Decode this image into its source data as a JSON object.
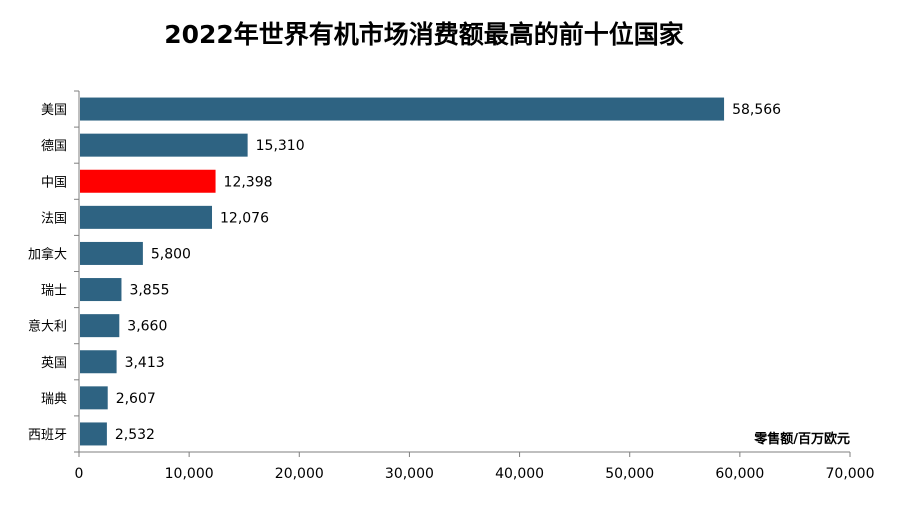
{
  "chart_data": {
    "type": "bar",
    "orientation": "horizontal",
    "title": "2022年世界有机市场消费额最高的前十位国家",
    "unit_label": "零售额/百万欧元",
    "categories": [
      "美国",
      "德国",
      "中国",
      "法国",
      "加拿大",
      "瑞士",
      "意大利",
      "英国",
      "瑞典",
      "西班牙"
    ],
    "values": [
      58566,
      15310,
      12398,
      12076,
      5800,
      3855,
      3660,
      3413,
      2607,
      2532
    ],
    "value_labels": [
      "58,566",
      "15,310",
      "12,398",
      "12,076",
      "5,800",
      "3,855",
      "3,660",
      "3,413",
      "2,607",
      "2,532"
    ],
    "highlight_category": "中国",
    "colors": {
      "bar": "#2e6382",
      "highlight": "#ff0000"
    },
    "xlim": [
      0,
      70000
    ],
    "xticks": [
      0,
      10000,
      20000,
      30000,
      40000,
      50000,
      60000,
      70000
    ],
    "xtick_labels": [
      "0",
      "10,000",
      "20,000",
      "30,000",
      "40,000",
      "50,000",
      "60,000",
      "70,000"
    ],
    "grid": false
  }
}
